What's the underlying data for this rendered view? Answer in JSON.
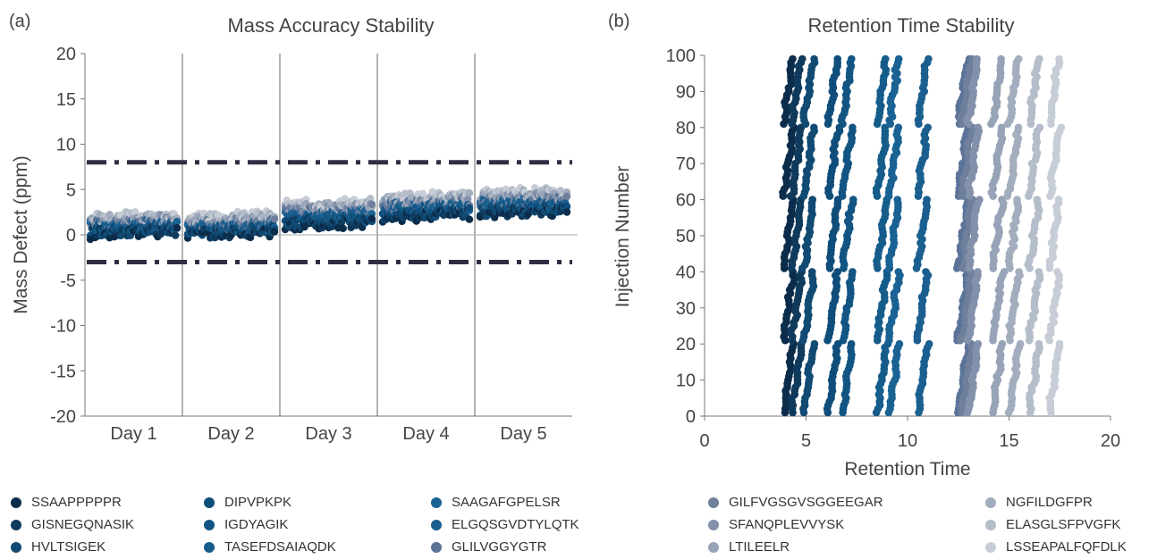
{
  "chart_data": [
    {
      "type": "scatter",
      "panel_tag": "(a)",
      "title": "Mass Accuracy Stability",
      "xlabel": "",
      "ylabel": "Mass Defect (ppm)",
      "ylim": [
        -20,
        20
      ],
      "yticks": [
        20,
        15,
        10,
        5,
        0,
        -5,
        -10,
        -15,
        -20
      ],
      "categories": [
        "Day 1",
        "Day 2",
        "Day 3",
        "Day 4",
        "Day 5"
      ],
      "tolerance_lines": [
        8,
        -3
      ],
      "band_trend": [
        {
          "category": "Day 1",
          "low": -0.3,
          "high": 2.3
        },
        {
          "category": "Day 2",
          "low": -0.4,
          "high": 2.2
        },
        {
          "category": "Day 3",
          "low": 0.5,
          "high": 3.8
        },
        {
          "category": "Day 4",
          "low": 1.5,
          "high": 4.5
        },
        {
          "category": "Day 5",
          "low": 1.8,
          "high": 5.0
        }
      ]
    },
    {
      "type": "scatter",
      "panel_tag": "(b)",
      "title": "Retention Time Stability",
      "xlabel": "Retention Time",
      "ylabel": "Injection Number",
      "xlim": [
        0,
        20
      ],
      "ylim": [
        0,
        100
      ],
      "xticks": [
        0,
        5,
        10,
        15,
        20
      ],
      "yticks": [
        100,
        90,
        80,
        70,
        60,
        50,
        40,
        30,
        20,
        10,
        0
      ],
      "series_rt": [
        {
          "name": "SSAAPPPPPR",
          "rt": 3.9
        },
        {
          "name": "GISNEGQNASIK",
          "rt": 4.3
        },
        {
          "name": "HVLTSIGEK",
          "rt": 4.9
        },
        {
          "name": "DIPVPKPK",
          "rt": 6.1
        },
        {
          "name": "IGDYAGIK",
          "rt": 6.8
        },
        {
          "name": "TASEFDSAIAQDK",
          "rt": 8.5
        },
        {
          "name": "SAAGAFGPELSR",
          "rt": 9.1
        },
        {
          "name": "ELGQSGVDTYLQTK",
          "rt": 10.5
        },
        {
          "name": "GLILVGGYGTR",
          "rt": 12.5
        },
        {
          "name": "GILFVGSGVSGGEEGAR",
          "rt": 12.7
        },
        {
          "name": "SFANQPLEVVYSK",
          "rt": 13.0
        },
        {
          "name": "LTILEELR",
          "rt": 14.2
        },
        {
          "name": "NGFILDGFPR",
          "rt": 15.0
        },
        {
          "name": "ELASGLSFPVGFK",
          "rt": 16.0
        },
        {
          "name": "LSSEAPALFQFDLK",
          "rt": 17.0
        }
      ]
    }
  ],
  "legend": [
    {
      "name": "SSAAPPPPPR",
      "color": "#0b2c4a"
    },
    {
      "name": "GISNEGQNASIK",
      "color": "#0f3a5c"
    },
    {
      "name": "HVLTSIGEK",
      "color": "#114a72"
    },
    {
      "name": "DIPVPKPK",
      "color": "#0f4d7a"
    },
    {
      "name": "IGDYAGIK",
      "color": "#125583"
    },
    {
      "name": "TASEFDSAIAQDK",
      "color": "#155c8a"
    },
    {
      "name": "SAAGAFGPELSR",
      "color": "#1a6294"
    },
    {
      "name": "ELGQSGVDTYLQTK",
      "color": "#1a5f8f"
    },
    {
      "name": "GLILVGGYGTR",
      "color": "#5b7398"
    },
    {
      "name": "GILFVGSGVSGGEEGAR",
      "color": "#6e809c"
    },
    {
      "name": "SFANQPLEVVYSK",
      "color": "#8391ab"
    },
    {
      "name": "LTILEELR",
      "color": "#97a3b7"
    },
    {
      "name": "NGFILDGFPR",
      "color": "#a2adbd"
    },
    {
      "name": "ELASGLSFPVGFK",
      "color": "#b4bdc9"
    },
    {
      "name": "LSSEAPALFQFDLK",
      "color": "#c7cdd6"
    }
  ]
}
